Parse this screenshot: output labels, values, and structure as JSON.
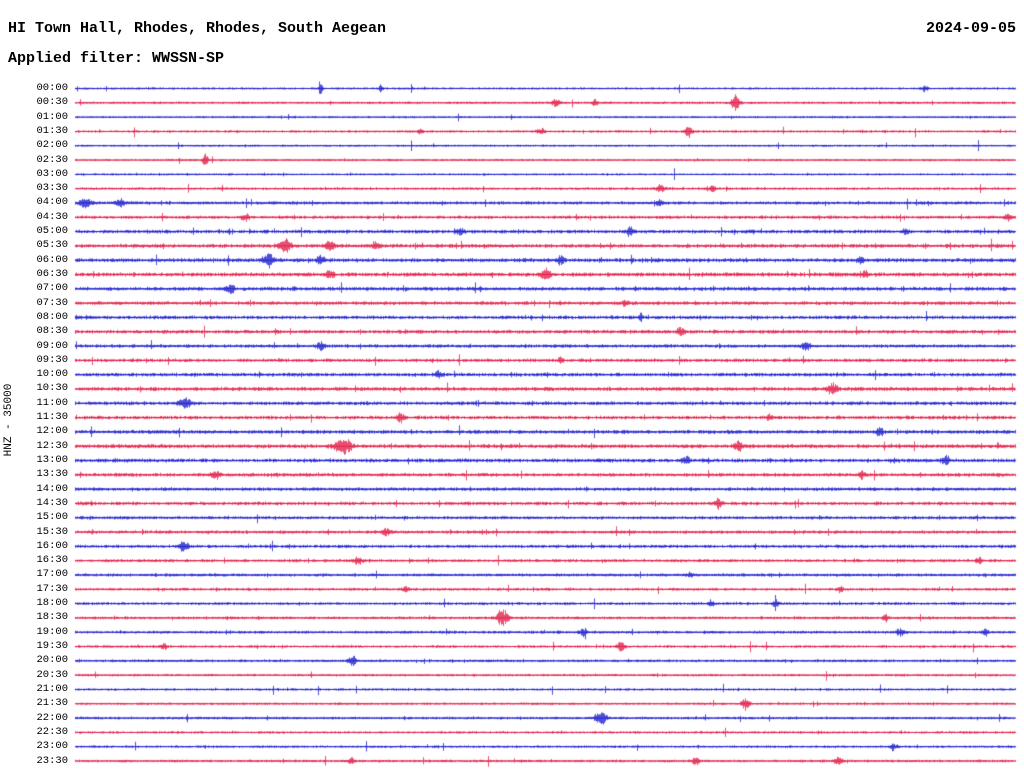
{
  "header": {
    "station_title": "HI Town Hall, Rhodes, Rhodes, South Aegean",
    "date": "2024-09-05",
    "filter_label": "Applied filter: WWSSN-SP"
  },
  "axis": {
    "scale_label": "HNZ - 35000"
  },
  "chart_data": {
    "type": "line",
    "variant": "helicorder-seismogram",
    "title": "HI Town Hall, Rhodes, Rhodes, South Aegean",
    "date": "2024-09-05",
    "filter": "WWSSN-SP",
    "channel_scale": "HNZ - 35000",
    "minutes_per_row": 30,
    "time_start": "00:00",
    "time_end": "23:30",
    "colors": {
      "even_row": "#1414cd",
      "odd_row": "#e01441",
      "text": "#000000"
    },
    "row_labels": [
      "00:00",
      "00:30",
      "01:00",
      "01:30",
      "02:00",
      "02:30",
      "03:00",
      "03:30",
      "04:00",
      "04:30",
      "05:00",
      "05:30",
      "06:00",
      "06:30",
      "07:00",
      "07:30",
      "08:00",
      "08:30",
      "09:00",
      "09:30",
      "10:00",
      "10:30",
      "11:00",
      "11:30",
      "12:00",
      "12:30",
      "13:00",
      "13:30",
      "14:00",
      "14:30",
      "15:00",
      "15:30",
      "16:00",
      "16:30",
      "17:00",
      "17:30",
      "18:00",
      "18:30",
      "19:00",
      "19:30",
      "20:00",
      "20:30",
      "21:00",
      "21:30",
      "22:00",
      "22:30",
      "23:00",
      "23:30"
    ],
    "noise_levels": [
      1.1,
      1.2,
      1.0,
      1.2,
      1.0,
      1.1,
      1.0,
      1.3,
      1.6,
      1.6,
      1.8,
      1.9,
      2.0,
      2.0,
      1.9,
      1.8,
      1.8,
      1.8,
      1.7,
      1.7,
      1.8,
      1.9,
      1.8,
      1.8,
      1.9,
      2.0,
      1.9,
      1.8,
      1.7,
      1.7,
      1.6,
      1.6,
      1.6,
      1.5,
      1.5,
      1.4,
      1.4,
      1.4,
      1.4,
      1.3,
      1.3,
      1.2,
      1.2,
      1.2,
      1.3,
      1.2,
      1.2,
      1.3
    ],
    "events_key": {
      "r": "row_index",
      "p": "position_fraction_of_row",
      "a": "amplitude_px",
      "w": "width_fraction"
    },
    "events": [
      {
        "r": 0,
        "p": 0.261,
        "a": 6,
        "w": 0.002
      },
      {
        "r": 0,
        "p": 0.325,
        "a": 4,
        "w": 0.002
      },
      {
        "r": 0,
        "p": 0.904,
        "a": 3,
        "w": 0.003
      },
      {
        "r": 1,
        "p": 0.511,
        "a": 4,
        "w": 0.004
      },
      {
        "r": 1,
        "p": 0.553,
        "a": 4,
        "w": 0.003
      },
      {
        "r": 1,
        "p": 0.702,
        "a": 9,
        "w": 0.004
      },
      {
        "r": 3,
        "p": 0.367,
        "a": 3,
        "w": 0.003
      },
      {
        "r": 3,
        "p": 0.495,
        "a": 4,
        "w": 0.004
      },
      {
        "r": 3,
        "p": 0.652,
        "a": 5,
        "w": 0.004
      },
      {
        "r": 5,
        "p": 0.138,
        "a": 6,
        "w": 0.003
      },
      {
        "r": 7,
        "p": 0.622,
        "a": 4,
        "w": 0.004
      },
      {
        "r": 7,
        "p": 0.678,
        "a": 4,
        "w": 0.003
      },
      {
        "r": 8,
        "p": 0.011,
        "a": 5,
        "w": 0.006
      },
      {
        "r": 8,
        "p": 0.048,
        "a": 4,
        "w": 0.005
      },
      {
        "r": 8,
        "p": 0.622,
        "a": 3,
        "w": 0.004
      },
      {
        "r": 9,
        "p": 0.181,
        "a": 4,
        "w": 0.004
      },
      {
        "r": 9,
        "p": 0.992,
        "a": 4,
        "w": 0.004
      },
      {
        "r": 10,
        "p": 0.41,
        "a": 4,
        "w": 0.004
      },
      {
        "r": 10,
        "p": 0.59,
        "a": 5,
        "w": 0.004
      },
      {
        "r": 10,
        "p": 0.883,
        "a": 3,
        "w": 0.004
      },
      {
        "r": 11,
        "p": 0.223,
        "a": 7,
        "w": 0.006
      },
      {
        "r": 11,
        "p": 0.271,
        "a": 5,
        "w": 0.005
      },
      {
        "r": 11,
        "p": 0.319,
        "a": 4,
        "w": 0.004
      },
      {
        "r": 12,
        "p": 0.205,
        "a": 8,
        "w": 0.005
      },
      {
        "r": 12,
        "p": 0.261,
        "a": 5,
        "w": 0.004
      },
      {
        "r": 12,
        "p": 0.516,
        "a": 4,
        "w": 0.004
      },
      {
        "r": 12,
        "p": 0.835,
        "a": 4,
        "w": 0.003
      },
      {
        "r": 13,
        "p": 0.271,
        "a": 4,
        "w": 0.004
      },
      {
        "r": 13,
        "p": 0.5,
        "a": 6,
        "w": 0.005
      },
      {
        "r": 13,
        "p": 0.84,
        "a": 4,
        "w": 0.003
      },
      {
        "r": 14,
        "p": 0.165,
        "a": 4,
        "w": 0.004
      },
      {
        "r": 15,
        "p": 0.585,
        "a": 4,
        "w": 0.003
      },
      {
        "r": 16,
        "p": 0.601,
        "a": 3,
        "w": 0.003
      },
      {
        "r": 17,
        "p": 0.644,
        "a": 4,
        "w": 0.004
      },
      {
        "r": 18,
        "p": 0.261,
        "a": 4,
        "w": 0.004
      },
      {
        "r": 18,
        "p": 0.777,
        "a": 5,
        "w": 0.004
      },
      {
        "r": 19,
        "p": 0.516,
        "a": 3,
        "w": 0.003
      },
      {
        "r": 20,
        "p": 0.386,
        "a": 4,
        "w": 0.004
      },
      {
        "r": 21,
        "p": 0.805,
        "a": 7,
        "w": 0.005
      },
      {
        "r": 22,
        "p": 0.117,
        "a": 6,
        "w": 0.006
      },
      {
        "r": 23,
        "p": 0.346,
        "a": 4,
        "w": 0.004
      },
      {
        "r": 23,
        "p": 0.739,
        "a": 3,
        "w": 0.003
      },
      {
        "r": 24,
        "p": 0.856,
        "a": 4,
        "w": 0.004
      },
      {
        "r": 25,
        "p": 0.285,
        "a": 9,
        "w": 0.008
      },
      {
        "r": 25,
        "p": 0.705,
        "a": 5,
        "w": 0.004
      },
      {
        "r": 26,
        "p": 0.649,
        "a": 4,
        "w": 0.004
      },
      {
        "r": 26,
        "p": 0.926,
        "a": 5,
        "w": 0.004
      },
      {
        "r": 27,
        "p": 0.149,
        "a": 4,
        "w": 0.004
      },
      {
        "r": 27,
        "p": 0.837,
        "a": 4,
        "w": 0.004
      },
      {
        "r": 29,
        "p": 0.684,
        "a": 5,
        "w": 0.004
      },
      {
        "r": 31,
        "p": 0.33,
        "a": 4,
        "w": 0.004
      },
      {
        "r": 32,
        "p": 0.115,
        "a": 5,
        "w": 0.005
      },
      {
        "r": 33,
        "p": 0.301,
        "a": 4,
        "w": 0.004
      },
      {
        "r": 33,
        "p": 0.961,
        "a": 4,
        "w": 0.003
      },
      {
        "r": 34,
        "p": 0.654,
        "a": 3,
        "w": 0.003
      },
      {
        "r": 35,
        "p": 0.351,
        "a": 4,
        "w": 0.003
      },
      {
        "r": 35,
        "p": 0.814,
        "a": 3,
        "w": 0.003
      },
      {
        "r": 36,
        "p": 0.676,
        "a": 3,
        "w": 0.003
      },
      {
        "r": 36,
        "p": 0.745,
        "a": 4,
        "w": 0.003
      },
      {
        "r": 37,
        "p": 0.455,
        "a": 8,
        "w": 0.006
      },
      {
        "r": 37,
        "p": 0.862,
        "a": 4,
        "w": 0.003
      },
      {
        "r": 38,
        "p": 0.54,
        "a": 4,
        "w": 0.004
      },
      {
        "r": 38,
        "p": 0.878,
        "a": 4,
        "w": 0.004
      },
      {
        "r": 38,
        "p": 0.968,
        "a": 4,
        "w": 0.003
      },
      {
        "r": 39,
        "p": 0.094,
        "a": 4,
        "w": 0.003
      },
      {
        "r": 39,
        "p": 0.58,
        "a": 5,
        "w": 0.004
      },
      {
        "r": 40,
        "p": 0.295,
        "a": 5,
        "w": 0.004
      },
      {
        "r": 43,
        "p": 0.713,
        "a": 6,
        "w": 0.004
      },
      {
        "r": 44,
        "p": 0.559,
        "a": 7,
        "w": 0.006
      },
      {
        "r": 46,
        "p": 0.87,
        "a": 4,
        "w": 0.003
      },
      {
        "r": 47,
        "p": 0.293,
        "a": 4,
        "w": 0.003
      },
      {
        "r": 47,
        "p": 0.66,
        "a": 4,
        "w": 0.004
      },
      {
        "r": 47,
        "p": 0.812,
        "a": 4,
        "w": 0.004
      }
    ]
  }
}
